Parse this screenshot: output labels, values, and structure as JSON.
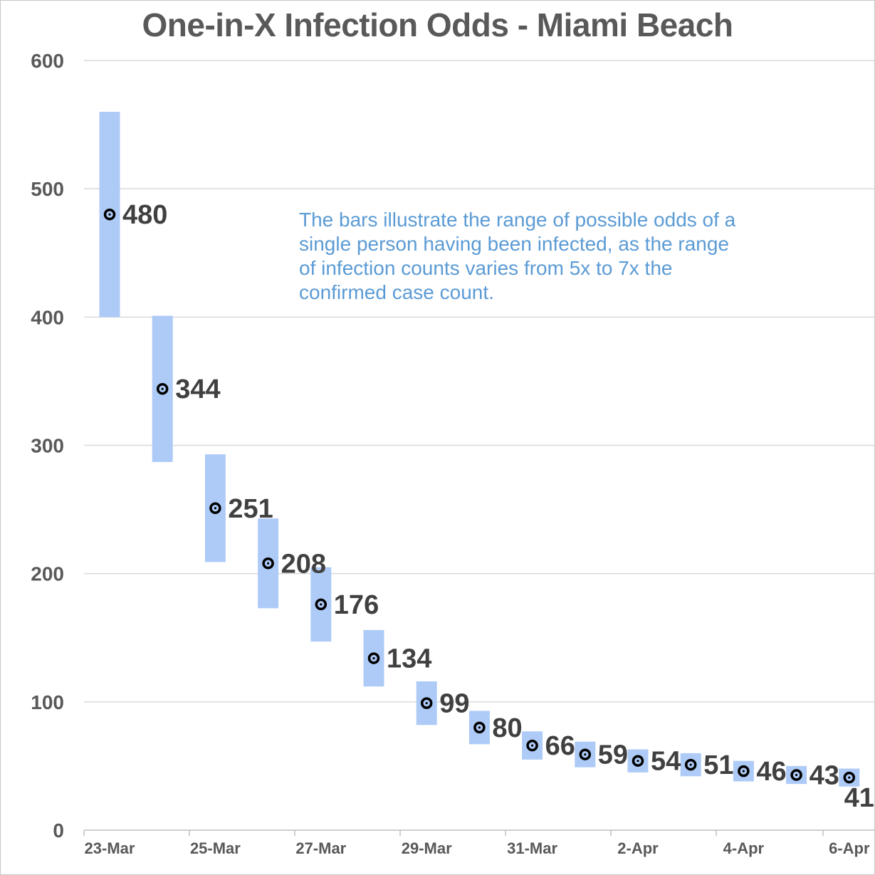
{
  "chart_data": {
    "type": "bar",
    "title": "One-in-X Infection Odds - Miami Beach",
    "annotation": [
      "The bars illustrate the range of possible odds of a",
      "single person having been infected, as the range",
      "of infection counts varies from 5x to 7x the",
      "confirmed case count."
    ],
    "x_tick_labels": [
      "23-Mar",
      "25-Mar",
      "27-Mar",
      "29-Mar",
      "31-Mar",
      "2-Apr",
      "4-Apr",
      "6-Apr"
    ],
    "y_ticks": [
      0,
      100,
      200,
      300,
      400,
      500,
      600
    ],
    "ylim": [
      0,
      600
    ],
    "grid": true,
    "categories": [
      "23-Mar",
      "24-Mar",
      "25-Mar",
      "26-Mar",
      "27-Mar",
      "28-Mar",
      "29-Mar",
      "30-Mar",
      "31-Mar",
      "1-Apr",
      "2-Apr",
      "3-Apr",
      "4-Apr",
      "5-Apr",
      "6-Apr"
    ],
    "series": [
      {
        "values": [
          480,
          344,
          251,
          208,
          176,
          134,
          99,
          80,
          66,
          59,
          54,
          51,
          46,
          43,
          41
        ],
        "low": [
          400,
          287,
          209,
          173,
          147,
          112,
          82,
          67,
          55,
          49,
          45,
          42,
          38,
          36,
          34
        ],
        "high": [
          560,
          401,
          293,
          243,
          205,
          156,
          116,
          93,
          77,
          69,
          63,
          60,
          54,
          50,
          48
        ]
      }
    ],
    "colors": {
      "bar": "#aecbf7",
      "marker": "#000000",
      "label": "#404040",
      "annotation": "#5b9bd5",
      "title": "#595959"
    }
  }
}
